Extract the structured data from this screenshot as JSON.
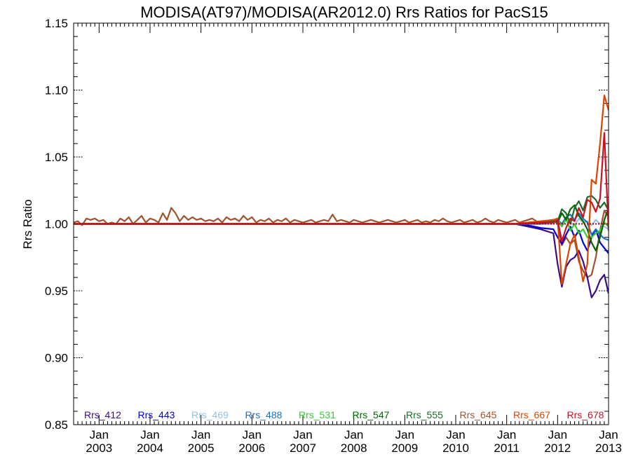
{
  "chart_data": {
    "type": "line",
    "title": "MODISA(AT97)/MODISA(AR2012.0)  Rrs Ratios for PacS15",
    "xlabel": "",
    "ylabel": "Rrs Ratio",
    "xlim": [
      "2002-07",
      "2013-01"
    ],
    "ylim": [
      0.85,
      1.15
    ],
    "yticks": [
      "0.85",
      "0.90",
      "0.95",
      "1.00",
      "1.05",
      "1.10",
      "1.15"
    ],
    "xticks": [
      {
        "month": "Jan",
        "year": "2003",
        "date": "2003-01"
      },
      {
        "month": "Jan",
        "year": "2004",
        "date": "2004-01"
      },
      {
        "month": "Jan",
        "year": "2005",
        "date": "2005-01"
      },
      {
        "month": "Jan",
        "year": "2006",
        "date": "2006-01"
      },
      {
        "month": "Jan",
        "year": "2007",
        "date": "2007-01"
      },
      {
        "month": "Jan",
        "year": "2008",
        "date": "2008-01"
      },
      {
        "month": "Jan",
        "year": "2009",
        "date": "2009-01"
      },
      {
        "month": "Jan",
        "year": "2010",
        "date": "2010-01"
      },
      {
        "month": "Jan",
        "year": "2011",
        "date": "2011-01"
      },
      {
        "month": "Jan",
        "year": "2012",
        "date": "2012-01"
      },
      {
        "month": "Jan",
        "year": "2013",
        "date": "2013-01"
      }
    ],
    "reference_line": {
      "y": 1.0,
      "style": "dotted",
      "color": "#cc0000"
    },
    "legend_position": "bottom",
    "series": [
      {
        "name": "Rrs_412",
        "color": "#3d0a85",
        "x": [
          "2002-07",
          "2011-03",
          "2011-06",
          "2011-09",
          "2011-12",
          "2012-01",
          "2012-02",
          "2012-03",
          "2012-04",
          "2012-05",
          "2012-06",
          "2012-07",
          "2012-08",
          "2012-09",
          "2012-10",
          "2012-11",
          "2012-12",
          "2013-01"
        ],
        "y": [
          1.0,
          1.0,
          0.998,
          0.996,
          0.993,
          0.97,
          0.953,
          0.968,
          0.973,
          0.975,
          0.98,
          0.972,
          0.96,
          0.945,
          0.95,
          0.958,
          0.962,
          0.948
        ]
      },
      {
        "name": "Rrs_443",
        "color": "#0000dd",
        "x": [
          "2002-07",
          "2011-03",
          "2011-06",
          "2011-09",
          "2011-12",
          "2012-01",
          "2012-02",
          "2012-03",
          "2012-04",
          "2012-05",
          "2012-06",
          "2012-07",
          "2012-08",
          "2012-09",
          "2012-10",
          "2012-11",
          "2012-12",
          "2013-01"
        ],
        "y": [
          1.0,
          1.0,
          0.999,
          0.997,
          0.996,
          0.99,
          0.985,
          0.992,
          0.998,
          0.99,
          0.995,
          0.986,
          0.98,
          0.99,
          0.996,
          0.986,
          0.982,
          0.978
        ]
      },
      {
        "name": "Rrs_469",
        "color": "#8fc3e6",
        "x": [
          "2002-07",
          "2011-03",
          "2011-09",
          "2011-12",
          "2012-01",
          "2012-02",
          "2012-03",
          "2012-04",
          "2012-05",
          "2012-06",
          "2012-07",
          "2012-08",
          "2012-09",
          "2012-10",
          "2012-11",
          "2012-12",
          "2013-01"
        ],
        "y": [
          1.0,
          1.0,
          1.0,
          1.0,
          1.002,
          0.998,
          1.003,
          1.001,
          0.999,
          1.004,
          1.001,
          1.002,
          0.999,
          1.003,
          1.0,
          0.998,
          0.996
        ]
      },
      {
        "name": "Rrs_488",
        "color": "#1e6fc0",
        "x": [
          "2002-07",
          "2011-03",
          "2011-09",
          "2011-12",
          "2012-01",
          "2012-02",
          "2012-03",
          "2012-04",
          "2012-05",
          "2012-06",
          "2012-07",
          "2012-08",
          "2012-09",
          "2012-10",
          "2012-11",
          "2012-12",
          "2013-01"
        ],
        "y": [
          1.0,
          1.0,
          1.0,
          1.001,
          1.003,
          1.0,
          1.005,
          1.007,
          1.003,
          1.008,
          1.004,
          1.001,
          0.992,
          0.996,
          0.992,
          0.989,
          0.988
        ]
      },
      {
        "name": "Rrs_531",
        "color": "#33cc33",
        "x": [
          "2002-07",
          "2011-03",
          "2011-09",
          "2011-12",
          "2012-01",
          "2012-02",
          "2012-03",
          "2012-04",
          "2012-05",
          "2012-06",
          "2012-07",
          "2012-08",
          "2012-09",
          "2012-10",
          "2012-11",
          "2012-12",
          "2013-01"
        ],
        "y": [
          1.0,
          1.0,
          1.001,
          1.002,
          1.003,
          0.998,
          1.004,
          0.995,
          1.0,
          0.993,
          0.996,
          0.99,
          0.99,
          0.993,
          0.995,
          1.001,
          0.998
        ]
      },
      {
        "name": "Rrs_547",
        "color": "#006600",
        "x": [
          "2002-07",
          "2011-03",
          "2011-09",
          "2011-12",
          "2012-01",
          "2012-02",
          "2012-03",
          "2012-04",
          "2012-05",
          "2012-06",
          "2012-07",
          "2012-08",
          "2012-09",
          "2012-10",
          "2012-11",
          "2012-12",
          "2013-01"
        ],
        "y": [
          1.0,
          1.0,
          1.001,
          1.002,
          1.001,
          1.008,
          1.003,
          1.011,
          1.014,
          1.006,
          1.002,
          0.996,
          0.986,
          0.98,
          0.99,
          1.003,
          1.012
        ]
      },
      {
        "name": "Rrs_555",
        "color": "#1a6b2a",
        "x": [
          "2002-07",
          "2011-03",
          "2011-09",
          "2011-12",
          "2012-01",
          "2012-02",
          "2012-03",
          "2012-04",
          "2012-05",
          "2012-06",
          "2012-07",
          "2012-08",
          "2012-09",
          "2012-10",
          "2012-11",
          "2012-12",
          "2013-01"
        ],
        "y": [
          1.0,
          1.0,
          1.001,
          1.002,
          1.002,
          1.011,
          1.008,
          1.0,
          1.012,
          1.017,
          1.01,
          1.02,
          1.021,
          1.018,
          1.012,
          1.016,
          1.01
        ]
      },
      {
        "name": "Rrs_645",
        "color": "#a0522d",
        "x": [
          "2002-07",
          "2002-08",
          "2002-09",
          "2002-10",
          "2002-11",
          "2002-12",
          "2003-01",
          "2003-02",
          "2003-03",
          "2003-04",
          "2003-05",
          "2003-06",
          "2003-07",
          "2003-08",
          "2003-09",
          "2003-10",
          "2003-11",
          "2003-12",
          "2004-01",
          "2004-02",
          "2004-03",
          "2004-04",
          "2004-05",
          "2004-06",
          "2004-07",
          "2004-08",
          "2004-09",
          "2004-10",
          "2004-11",
          "2004-12",
          "2005-01",
          "2005-02",
          "2005-03",
          "2005-04",
          "2005-05",
          "2005-06",
          "2005-07",
          "2005-08",
          "2005-09",
          "2005-10",
          "2005-11",
          "2005-12",
          "2006-01",
          "2006-02",
          "2006-03",
          "2006-04",
          "2006-05",
          "2006-06",
          "2006-07",
          "2006-08",
          "2006-09",
          "2006-10",
          "2006-11",
          "2006-12",
          "2007-01",
          "2007-02",
          "2007-03",
          "2007-04",
          "2007-05",
          "2007-06",
          "2007-07",
          "2007-08",
          "2007-09",
          "2007-10",
          "2007-11",
          "2007-12",
          "2008-01",
          "2008-02",
          "2008-03",
          "2008-04",
          "2008-05",
          "2008-06",
          "2008-07",
          "2008-08",
          "2008-09",
          "2008-10",
          "2008-11",
          "2008-12",
          "2009-01",
          "2009-02",
          "2009-03",
          "2009-04",
          "2009-05",
          "2009-06",
          "2009-07",
          "2009-08",
          "2009-09",
          "2009-10",
          "2009-11",
          "2009-12",
          "2010-01",
          "2010-02",
          "2010-03",
          "2010-04",
          "2010-05",
          "2010-06",
          "2010-07",
          "2010-08",
          "2010-09",
          "2010-10",
          "2010-11",
          "2010-12",
          "2011-01",
          "2011-02",
          "2011-03",
          "2011-04",
          "2011-05",
          "2011-06",
          "2011-07",
          "2011-08",
          "2011-09",
          "2011-10",
          "2011-11",
          "2011-12",
          "2012-01",
          "2012-02",
          "2012-03",
          "2012-04",
          "2012-05",
          "2012-06",
          "2012-07",
          "2012-08",
          "2012-09",
          "2012-10",
          "2012-11",
          "2012-12",
          "2013-01"
        ],
        "y": [
          1.001,
          1.002,
          0.999,
          1.004,
          1.003,
          1.004,
          1.002,
          1.003,
          1.0,
          1.001,
          1.0,
          1.004,
          1.002,
          1.005,
          1.0,
          1.003,
          1.006,
          1.001,
          1.004,
          1.003,
          1.001,
          1.008,
          1.003,
          1.012,
          1.008,
          1.002,
          1.006,
          1.003,
          1.005,
          1.003,
          1.004,
          1.002,
          1.003,
          1.002,
          1.004,
          1.001,
          1.005,
          1.003,
          1.004,
          1.002,
          1.006,
          1.003,
          1.005,
          1.001,
          1.003,
          1.002,
          1.004,
          1.001,
          1.003,
          1.002,
          1.004,
          1.001,
          1.003,
          1.002,
          1.001,
          1.002,
          1.003,
          1.001,
          1.002,
          1.003,
          1.002,
          1.007,
          1.002,
          1.003,
          1.002,
          1.001,
          1.003,
          1.002,
          1.001,
          1.002,
          1.003,
          1.002,
          1.001,
          1.002,
          1.003,
          1.002,
          1.001,
          1.002,
          1.003,
          1.001,
          1.002,
          1.003,
          1.001,
          1.002,
          1.001,
          1.003,
          1.002,
          1.004,
          1.002,
          1.001,
          1.002,
          1.003,
          1.001,
          1.002,
          1.003,
          1.001,
          1.002,
          1.004,
          1.002,
          1.001,
          1.003,
          1.002,
          1.001,
          1.002,
          1.003,
          1.001,
          1.002,
          1.003,
          1.004,
          1.002,
          1.001,
          1.002,
          1.0,
          1.003,
          1.002,
          0.984,
          0.99,
          0.985,
          0.988,
          0.972,
          0.965,
          0.96,
          0.962,
          0.975,
          0.995,
          1.01,
          1.005
        ]
      },
      {
        "name": "Rrs_667",
        "color": "#dd4400",
        "x": [
          "2002-07",
          "2011-03",
          "2011-09",
          "2011-12",
          "2012-01",
          "2012-02",
          "2012-03",
          "2012-04",
          "2012-05",
          "2012-06",
          "2012-07",
          "2012-08",
          "2012-09",
          "2012-10",
          "2012-11",
          "2012-12",
          "2013-01"
        ],
        "y": [
          1.0,
          1.0,
          1.002,
          1.003,
          1.004,
          0.955,
          0.97,
          0.985,
          0.992,
          0.975,
          0.957,
          0.97,
          1.033,
          1.03,
          1.06,
          1.096,
          1.085
        ]
      },
      {
        "name": "Rrs_678",
        "color": "#cc1122",
        "x": [
          "2002-07",
          "2011-03",
          "2011-09",
          "2011-12",
          "2012-01",
          "2012-02",
          "2012-03",
          "2012-04",
          "2012-05",
          "2012-06",
          "2012-07",
          "2012-08",
          "2012-09",
          "2012-10",
          "2012-11",
          "2012-12",
          "2013-01"
        ],
        "y": [
          1.0,
          1.0,
          1.001,
          1.001,
          1.003,
          0.987,
          0.997,
          1.004,
          1.002,
          1.012,
          1.005,
          1.018,
          1.016,
          1.009,
          1.019,
          1.068,
          0.995
        ]
      }
    ]
  }
}
